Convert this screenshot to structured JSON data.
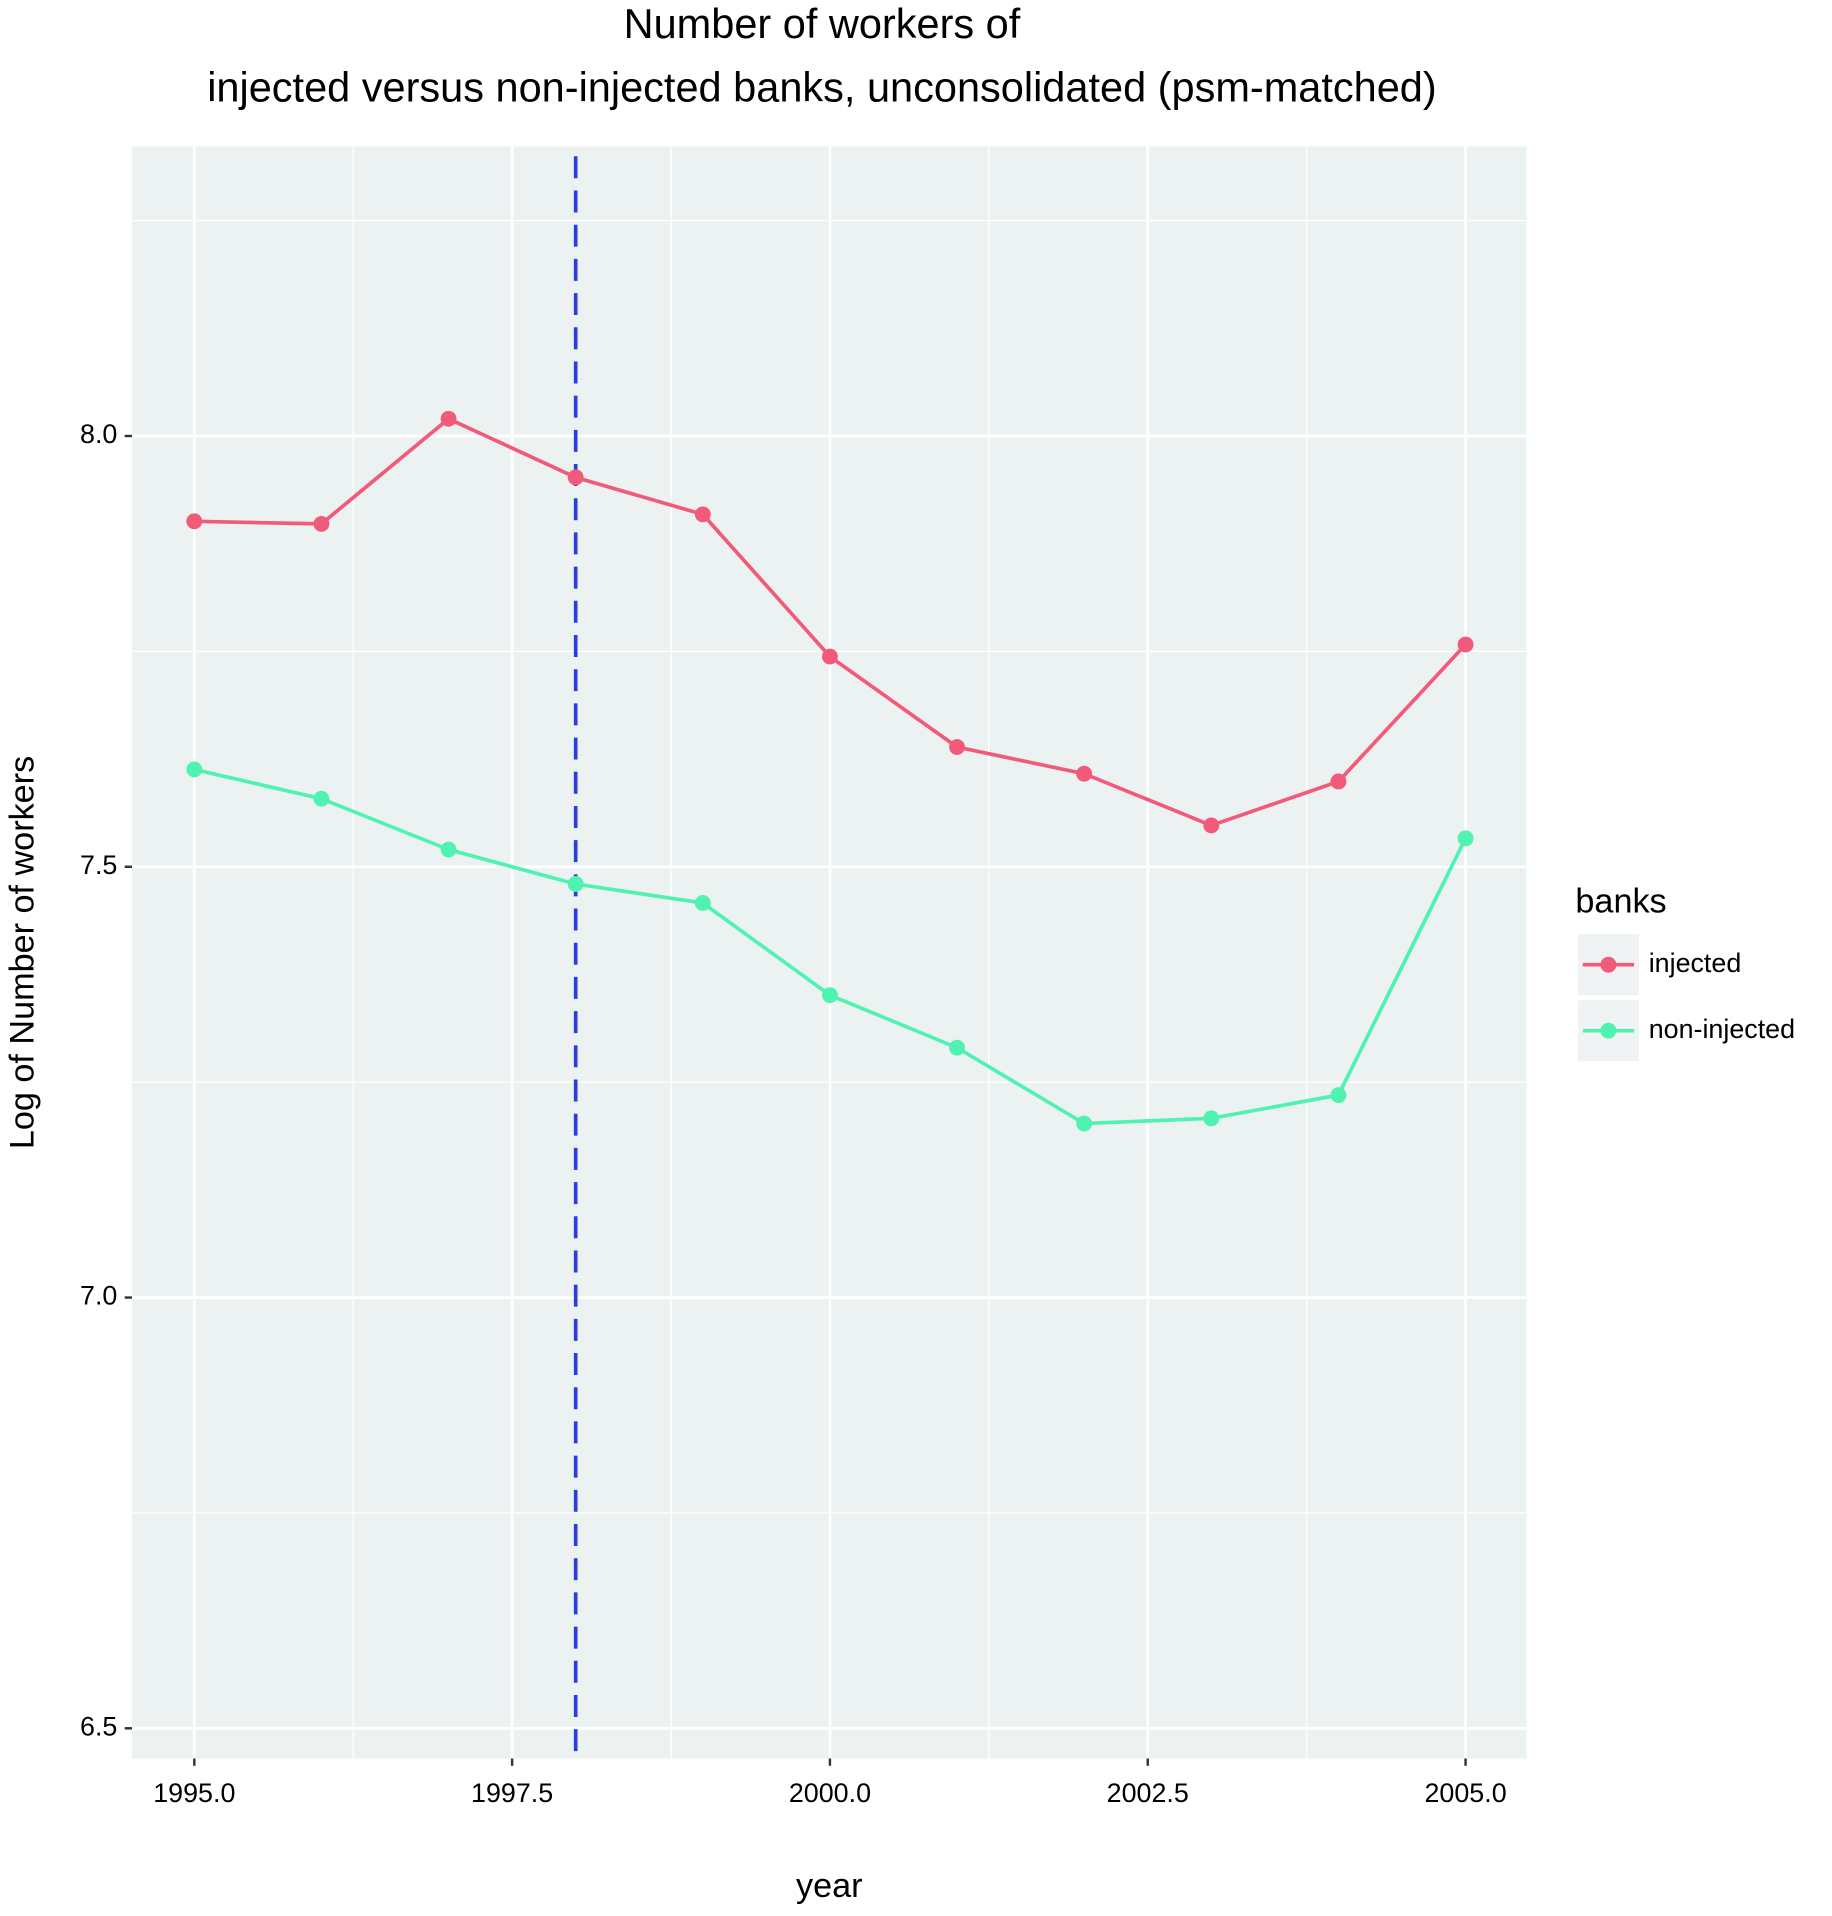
{
  "chart_data": {
    "type": "line",
    "title": [
      "Number of workers of",
      "injected versus non-injected banks, unconsolidated (psm-matched)"
    ],
    "x_label": "year",
    "y_label": "Log of Number of workers",
    "x": [
      1995,
      1996,
      1997,
      1998,
      1999,
      2000,
      2001,
      2002,
      2003,
      2004,
      2005
    ],
    "series": [
      {
        "name": "injected",
        "color": "#f25a7a",
        "values": [
          7.901,
          7.898,
          8.02,
          7.952,
          7.909,
          7.744,
          7.639,
          7.608,
          7.548,
          7.599,
          7.758
        ]
      },
      {
        "name": "non-injected",
        "color": "#50f2b2",
        "values": [
          7.613,
          7.579,
          7.52,
          7.48,
          7.458,
          7.351,
          7.29,
          7.202,
          7.208,
          7.235,
          7.533
        ]
      }
    ],
    "legend_title": "banks",
    "legend_position": "right",
    "xlim": [
      1994.51,
      2005.48
    ],
    "ylim": [
      6.465,
      8.336
    ],
    "xticks": [
      {
        "value": 1995,
        "label": "1995.0"
      },
      {
        "value": 1997.5,
        "label": "1997.5"
      },
      {
        "value": 2000,
        "label": "2000.0"
      },
      {
        "value": 2002.5,
        "label": "2002.5"
      },
      {
        "value": 2005,
        "label": "2005.0"
      }
    ],
    "yticks": [
      {
        "value": 6.5,
        "label": "6.5"
      },
      {
        "value": 7,
        "label": "7.0"
      },
      {
        "value": 7.5,
        "label": "7.5"
      },
      {
        "value": 8,
        "label": "8.0"
      }
    ],
    "xminor": [
      1996.25,
      1998.75,
      2001.25,
      2003.75
    ],
    "yminor": [
      6.75,
      7.25,
      7.75,
      8.25
    ],
    "grid": true,
    "reference_line": {
      "x": 1998,
      "color": "#2a3de0"
    }
  }
}
